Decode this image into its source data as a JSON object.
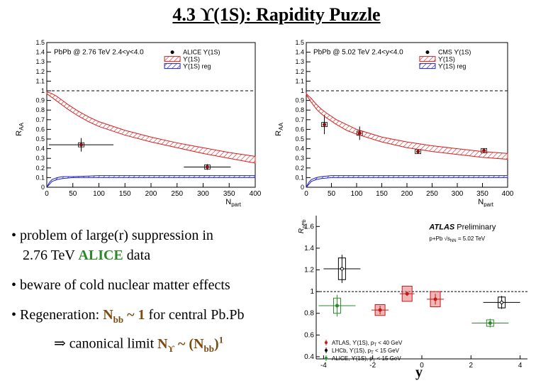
{
  "slide": {
    "title": "4.3  ϒ(1S): Rapidity Puzzle",
    "bullets": {
      "b1_line1": "• problem of large(r) suppression in",
      "b1_line2_pre": "2.76 TeV ",
      "b1_line2_alice": "ALICE",
      "b1_line2_post": " data",
      "b2": "• beware of cold nuclear matter effects",
      "b3_pre": "• Regeneration: ",
      "b3_nbb": "N",
      "b3_nbb_sub": "bb",
      "b3_mid": " ~ 1",
      "b3_post": " for central Pb.Pb",
      "b4_arrow": "⇒",
      "b4_text": "  canonical limit ",
      "b4_ny": "N",
      "b4_ny_sub": "ϒ",
      "b4_sim": " ~ (N",
      "b4_bb_sub": "bb",
      "b4_close": ")",
      "b4_sup": "1"
    },
    "bottom_label": "y"
  },
  "chart_data": [
    {
      "type": "line",
      "panel": "panel-a",
      "annotation": "PbPb @ 2.76 TeV 2.4<y<4.0",
      "xlabel": "N",
      "xlabel_sub": "part",
      "ylabel": "R",
      "ylabel_sub": "AA",
      "xlim": [
        0,
        400
      ],
      "ylim": [
        0,
        1.5
      ],
      "xticks": [
        0,
        50,
        100,
        150,
        200,
        250,
        300,
        350,
        400
      ],
      "yticks": [
        0,
        0.1,
        0.2,
        0.3,
        0.4,
        0.5,
        0.6,
        0.7,
        0.8,
        0.9,
        1,
        1.1,
        1.2,
        1.3,
        1.4,
        1.5
      ],
      "legend_position": "top-right",
      "reference_line": 1,
      "series": [
        {
          "name": "ALICE ϒ(1S)",
          "style": "points",
          "points": [
            {
              "x": 66,
              "y": 0.44,
              "yerr": 0.07,
              "xerr": 62
            },
            {
              "x": 308,
              "y": 0.21,
              "yerr": 0.03,
              "xerr": 45
            }
          ]
        },
        {
          "name": "ϒ(1S)",
          "style": "band",
          "color": "#d42020",
          "x": [
            0,
            10,
            20,
            30,
            40,
            60,
            80,
            100,
            150,
            200,
            250,
            300,
            350,
            400
          ],
          "upper": [
            0.99,
            0.97,
            0.94,
            0.9,
            0.86,
            0.79,
            0.73,
            0.68,
            0.59,
            0.52,
            0.46,
            0.41,
            0.36,
            0.32
          ],
          "lower": [
            0.97,
            0.93,
            0.89,
            0.85,
            0.81,
            0.74,
            0.68,
            0.63,
            0.54,
            0.47,
            0.41,
            0.35,
            0.3,
            0.25
          ]
        },
        {
          "name": "ϒ(1S) reg",
          "style": "band",
          "color": "#2020c8",
          "x": [
            0,
            5,
            10,
            20,
            30,
            50,
            100,
            200,
            300,
            400
          ],
          "upper": [
            0.0,
            0.05,
            0.08,
            0.1,
            0.11,
            0.11,
            0.12,
            0.12,
            0.12,
            0.12
          ],
          "lower": [
            0.0,
            0.03,
            0.06,
            0.08,
            0.09,
            0.1,
            0.1,
            0.1,
            0.1,
            0.1
          ]
        }
      ]
    },
    {
      "type": "line",
      "panel": "panel-b",
      "annotation": "PbPb @ 5.02 TeV 2.4<y<4.0",
      "xlabel": "N",
      "xlabel_sub": "part",
      "ylabel": "R",
      "ylabel_sub": "AA",
      "xlim": [
        0,
        400
      ],
      "ylim": [
        0,
        1.5
      ],
      "xticks": [
        0,
        50,
        100,
        150,
        200,
        250,
        300,
        350,
        400
      ],
      "yticks": [
        0,
        0.1,
        0.2,
        0.3,
        0.4,
        0.5,
        0.6,
        0.7,
        0.8,
        0.9,
        1,
        1.1,
        1.2,
        1.3,
        1.4,
        1.5
      ],
      "legend_position": "top-right",
      "reference_line": 1,
      "series": [
        {
          "name": "CMS ϒ(1S)",
          "style": "points",
          "points": [
            {
              "x": 36,
              "y": 0.65,
              "yerr": 0.1,
              "xerr": 0
            },
            {
              "x": 106,
              "y": 0.56,
              "yerr": 0.07,
              "xerr": 0
            },
            {
              "x": 222,
              "y": 0.37,
              "yerr": 0.02,
              "xerr": 0
            },
            {
              "x": 353,
              "y": 0.38,
              "yerr": 0.02,
              "xerr": 0
            }
          ]
        },
        {
          "name": "ϒ(1S)",
          "style": "band",
          "color": "#d42020",
          "x": [
            0,
            10,
            20,
            30,
            40,
            60,
            80,
            100,
            150,
            200,
            250,
            300,
            350,
            400
          ],
          "upper": [
            0.97,
            0.92,
            0.86,
            0.81,
            0.77,
            0.7,
            0.65,
            0.6,
            0.52,
            0.47,
            0.43,
            0.4,
            0.37,
            0.35
          ],
          "lower": [
            0.96,
            0.88,
            0.81,
            0.76,
            0.72,
            0.65,
            0.59,
            0.55,
            0.47,
            0.41,
            0.37,
            0.34,
            0.31,
            0.29
          ]
        },
        {
          "name": "ϒ(1S) reg",
          "style": "band",
          "color": "#2020c8",
          "x": [
            0,
            5,
            10,
            20,
            30,
            50,
            100,
            200,
            300,
            400
          ],
          "upper": [
            0.0,
            0.05,
            0.08,
            0.1,
            0.11,
            0.12,
            0.12,
            0.12,
            0.12,
            0.12
          ],
          "lower": [
            0.0,
            0.03,
            0.06,
            0.08,
            0.09,
            0.1,
            0.1,
            0.1,
            0.1,
            0.1
          ]
        }
      ]
    },
    {
      "type": "scatter",
      "panel": "panel-c",
      "annotation_bold": "ATLAS",
      "annotation_rest": " Preliminary",
      "annotation2": "p+Pb √s",
      "annotation2_sub": "NN",
      "annotation2_end": " = 5.02 TeV",
      "ylabel": "R",
      "ylabel_sub": "pPb",
      "xlim": [
        -4.3,
        4.3
      ],
      "ylim": [
        0.38,
        1.7
      ],
      "xticks": [
        -4,
        -2,
        0,
        2,
        4
      ],
      "yticks": [
        0.4,
        0.6,
        0.8,
        1,
        1.2,
        1.4,
        1.6
      ],
      "reference_line": 1,
      "legend_position": "bottom-left",
      "series": [
        {
          "name": "ATLAS, ϒ(1S), p",
          "name_sub": "T",
          "name_end": " < 40 GeV",
          "color": "#c21a1a",
          "points": [
            {
              "x": -1.7,
              "y": 0.83,
              "yerr": 0.04,
              "xerr": 0.35,
              "sys": 0.05
            },
            {
              "x": -0.6,
              "y": 0.98,
              "yerr": 0.02,
              "xerr": 0.3,
              "sys": 0.07
            },
            {
              "x": 0.55,
              "y": 0.93,
              "yerr": 0.05,
              "xerr": 0.35,
              "sys": 0.07
            }
          ]
        },
        {
          "name": "LHCb, ϒ(1S), p",
          "name_sub": "T",
          "name_end": " < 15 GeV",
          "color": "#000000",
          "points": [
            {
              "x": -3.25,
              "y": 1.21,
              "yerr": 0.13,
              "xerr": 0.75,
              "sys": 0.1
            },
            {
              "x": 3.25,
              "y": 0.9,
              "yerr": 0.06,
              "xerr": 0.75,
              "sys": 0.05
            }
          ]
        },
        {
          "name": "ALICE, ϒ(1S), p",
          "name_sub": "T",
          "name_end": " < 15 GeV",
          "color": "#2a8a2a",
          "points": [
            {
              "x": -3.45,
              "y": 0.87,
              "yerr": 0.1,
              "xerr": 0.75,
              "sys": 0.07
            },
            {
              "x": 2.78,
              "y": 0.71,
              "yerr": 0.04,
              "xerr": 0.75,
              "sys": 0.03
            }
          ]
        }
      ]
    }
  ]
}
